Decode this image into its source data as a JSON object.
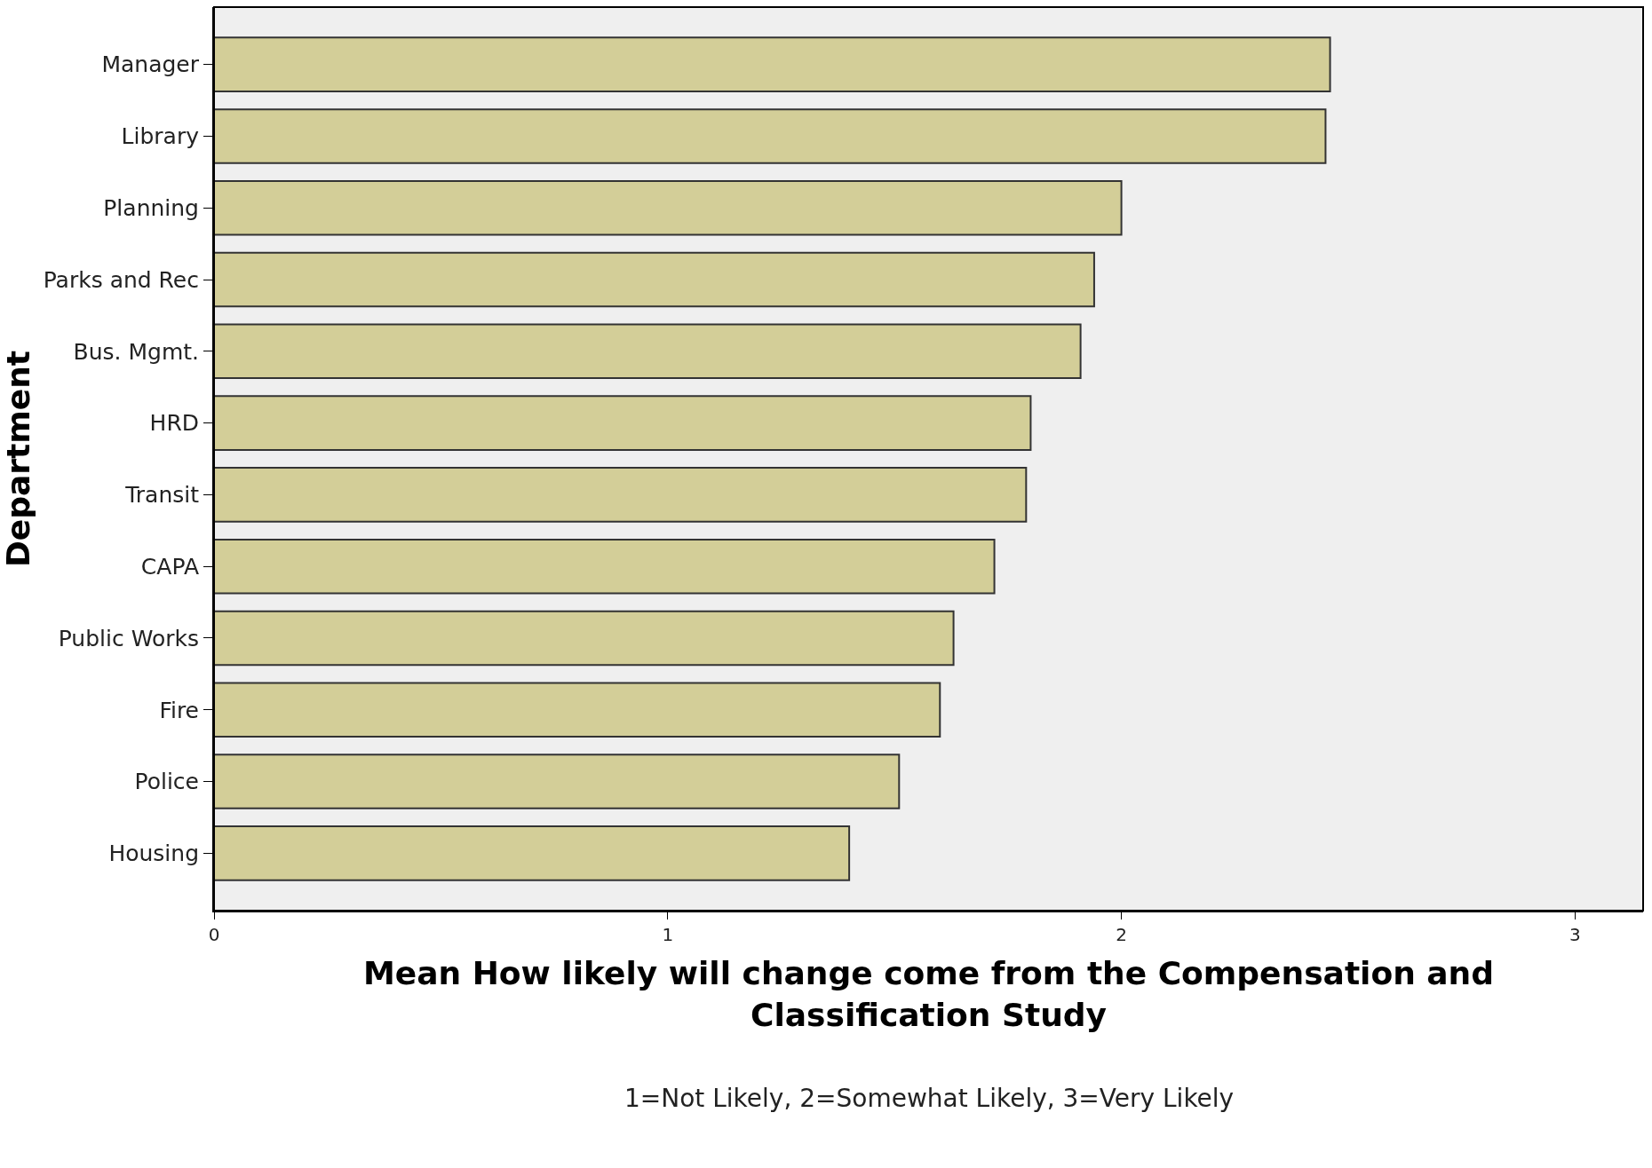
{
  "chart_data": {
    "type": "bar",
    "orientation": "horizontal",
    "categories": [
      "Manager",
      "Library",
      "Planning",
      "Parks and Rec",
      "Bus. Mgmt.",
      "HRD",
      "Transit",
      "CAPA",
      "Public Works",
      "Fire",
      "Police",
      "Housing"
    ],
    "values": [
      2.46,
      2.45,
      2.0,
      1.94,
      1.91,
      1.8,
      1.79,
      1.72,
      1.63,
      1.6,
      1.51,
      1.4
    ],
    "color": "#d3ce98",
    "xlim": [
      0,
      3.15
    ],
    "xticks": [
      0,
      1,
      2,
      3
    ],
    "xlabel": "Mean How likely will change come from the Compensation and Classification Study",
    "ylabel": "Department",
    "annotations": [
      "1=Not Likely, 2=Somewhat Likely, 3=Very Likely"
    ],
    "grid": false,
    "legend": false
  }
}
